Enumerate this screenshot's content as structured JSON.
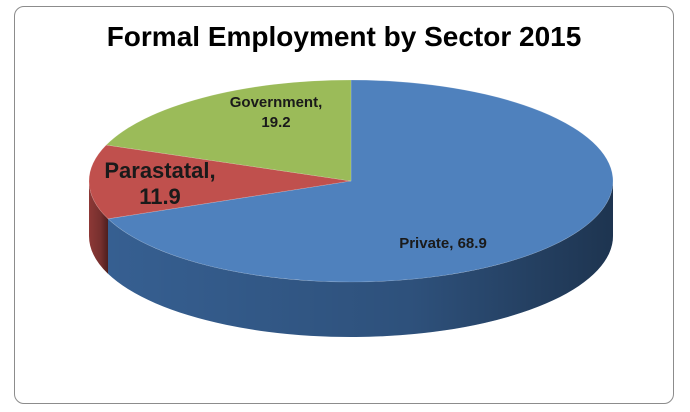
{
  "chart_data": {
    "type": "pie",
    "title": "Formal Employment by Sector 2015",
    "slices": [
      {
        "name": "Private",
        "value": 68.9,
        "color": "#4f81bd",
        "side_color": "#365f91",
        "label_line1": "Private, 68.9",
        "label_line2": ""
      },
      {
        "name": "Parastatal",
        "value": 11.9,
        "color": "#c0504d",
        "side_color": "#8c3836",
        "label_line1": "Parastatal,",
        "label_line2": "11.9"
      },
      {
        "name": "Government",
        "value": 19.2,
        "color": "#9bbb59",
        "side_color": "#71893f",
        "label_line1": "Government,",
        "label_line2": "19.2"
      }
    ],
    "legend": "none",
    "style": "3d-pie"
  }
}
